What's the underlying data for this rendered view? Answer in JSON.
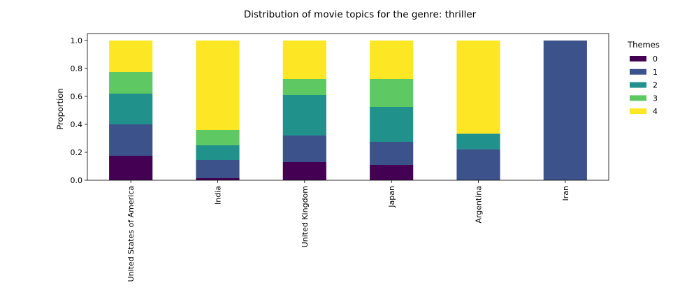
{
  "chart_data": {
    "type": "bar",
    "stacked": true,
    "title": "Distribution of movie topics for the genre: thriller",
    "xlabel": "",
    "ylabel": "Proportion",
    "ylim": [
      0,
      1.05
    ],
    "yticks": [
      "0.0",
      "0.2",
      "0.4",
      "0.6",
      "0.8",
      "1.0"
    ],
    "categories": [
      "United States of America",
      "India",
      "United Kingdom",
      "Japan",
      "Argentina",
      "Iran"
    ],
    "legend_title": "Themes",
    "legend_position": "outside-right",
    "grid": false,
    "series": [
      {
        "name": "0",
        "color": "#440154",
        "values": [
          0.175,
          0.015,
          0.13,
          0.11,
          0.0,
          0.0
        ]
      },
      {
        "name": "1",
        "color": "#3b528b",
        "values": [
          0.225,
          0.13,
          0.19,
          0.165,
          0.222,
          1.0
        ]
      },
      {
        "name": "2",
        "color": "#21918c",
        "values": [
          0.22,
          0.105,
          0.29,
          0.25,
          0.111,
          0.0
        ]
      },
      {
        "name": "3",
        "color": "#5ec962",
        "values": [
          0.155,
          0.11,
          0.115,
          0.2,
          0.0,
          0.0
        ]
      },
      {
        "name": "4",
        "color": "#fde725",
        "values": [
          0.225,
          0.64,
          0.275,
          0.275,
          0.667,
          0.0
        ]
      }
    ]
  }
}
